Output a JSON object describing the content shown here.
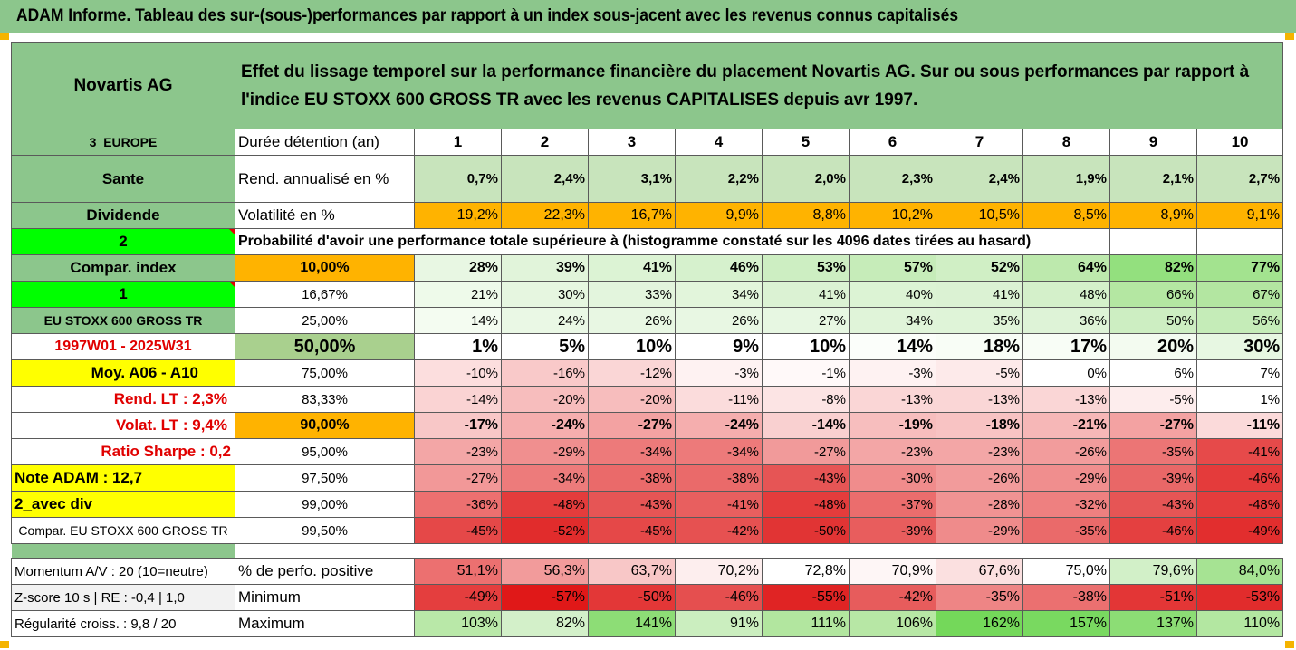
{
  "header": {
    "title": "ADAM Informe. Tableau des sur-(sous-)performances par rapport à un index sous-jacent avec les revenus connus capitalisés"
  },
  "stock": {
    "name": "Novartis AG",
    "description": "Effet du lissage temporel sur la performance financière du placement Novartis AG. Sur ou sous performances par rapport à l'indice EU STOXX 600 GROSS TR avec les revenus CAPITALISES depuis avr 1997.",
    "region": "3_EUROPE",
    "sector": "Sante",
    "category": "Dividende",
    "code_2": "2",
    "compar_index_label": "Compar. index",
    "code_1": "1",
    "index_name": "EU STOXX 600 GROSS TR",
    "period": "1997W01 - 2025W31",
    "moy_label": "Moy. A06 - A10",
    "rend_lt": "Rend. LT :   2,3%",
    "volat_lt": "Volat. LT :   9,4%",
    "sharpe": "Ratio Sharpe :   0,2",
    "note": "Note ADAM : 12,7",
    "div_mode": "2_avec div",
    "compar_full": "Compar. EU STOXX 600 GROSS TR"
  },
  "holding": {
    "label": "Durée détention (an)",
    "years": [
      "1",
      "2",
      "3",
      "4",
      "5",
      "6",
      "7",
      "8",
      "9",
      "10"
    ]
  },
  "rend": {
    "label": "Rend. annualisé en %",
    "values": [
      "0,7%",
      "2,4%",
      "3,1%",
      "2,2%",
      "2,0%",
      "2,3%",
      "2,4%",
      "1,9%",
      "2,1%",
      "2,7%"
    ]
  },
  "vol": {
    "label": "Volatilité en %",
    "values": [
      "19,2%",
      "22,3%",
      "16,7%",
      "9,9%",
      "8,8%",
      "10,2%",
      "10,5%",
      "8,5%",
      "8,9%",
      "9,1%"
    ]
  },
  "prob_title": "Probabilité d'avoir une performance totale supérieure à (histogramme constaté sur les 4096 dates tirées au hasard)",
  "prob_rows": [
    {
      "threshold": "10,00%",
      "values": [
        "28%",
        "39%",
        "41%",
        "46%",
        "53%",
        "57%",
        "52%",
        "64%",
        "82%",
        "77%"
      ]
    },
    {
      "threshold": "16,67%",
      "values": [
        "21%",
        "30%",
        "33%",
        "34%",
        "41%",
        "40%",
        "41%",
        "48%",
        "66%",
        "67%"
      ]
    },
    {
      "threshold": "25,00%",
      "values": [
        "14%",
        "24%",
        "26%",
        "26%",
        "27%",
        "34%",
        "35%",
        "36%",
        "50%",
        "56%"
      ]
    },
    {
      "threshold": "50,00%",
      "values": [
        "1%",
        "5%",
        "10%",
        "9%",
        "10%",
        "14%",
        "18%",
        "17%",
        "20%",
        "30%"
      ]
    },
    {
      "threshold": "75,00%",
      "values": [
        "-10%",
        "-16%",
        "-12%",
        "-3%",
        "-1%",
        "-3%",
        "-5%",
        "0%",
        "6%",
        "7%"
      ]
    },
    {
      "threshold": "83,33%",
      "values": [
        "-14%",
        "-20%",
        "-20%",
        "-11%",
        "-8%",
        "-13%",
        "-13%",
        "-13%",
        "-5%",
        "1%"
      ]
    },
    {
      "threshold": "90,00%",
      "values": [
        "-17%",
        "-24%",
        "-27%",
        "-24%",
        "-14%",
        "-19%",
        "-18%",
        "-21%",
        "-27%",
        "-11%"
      ]
    },
    {
      "threshold": "95,00%",
      "values": [
        "-23%",
        "-29%",
        "-34%",
        "-34%",
        "-27%",
        "-23%",
        "-23%",
        "-26%",
        "-35%",
        "-41%"
      ]
    },
    {
      "threshold": "97,50%",
      "values": [
        "-27%",
        "-34%",
        "-38%",
        "-38%",
        "-43%",
        "-30%",
        "-26%",
        "-29%",
        "-39%",
        "-46%"
      ]
    },
    {
      "threshold": "99,00%",
      "values": [
        "-36%",
        "-48%",
        "-43%",
        "-41%",
        "-48%",
        "-37%",
        "-28%",
        "-32%",
        "-43%",
        "-48%"
      ]
    },
    {
      "threshold": "99,50%",
      "values": [
        "-45%",
        "-52%",
        "-45%",
        "-42%",
        "-50%",
        "-39%",
        "-29%",
        "-35%",
        "-46%",
        "-49%"
      ]
    }
  ],
  "stats": [
    {
      "left": "Momentum A/V : 20 (10=neutre)",
      "label": "% de perfo. positive",
      "values": [
        "51,1%",
        "56,3%",
        "63,7%",
        "70,2%",
        "72,8%",
        "70,9%",
        "67,6%",
        "75,0%",
        "79,6%",
        "84,0%"
      ]
    },
    {
      "left": "Z-score 10 s  |  RE : -0,4  |  1,0",
      "label": "Minimum",
      "values": [
        "-49%",
        "-57%",
        "-50%",
        "-46%",
        "-55%",
        "-42%",
        "-35%",
        "-38%",
        "-51%",
        "-53%"
      ]
    },
    {
      "left": "Régularité croiss. : 9,8 / 20",
      "label": "Maximum",
      "values": [
        "103%",
        "82%",
        "141%",
        "91%",
        "111%",
        "106%",
        "162%",
        "157%",
        "137%",
        "110%"
      ]
    }
  ],
  "colors": {
    "header_green": "#8cc68c",
    "lime": "#00ff00",
    "yellow": "#ffff00",
    "orange": "#ffb300",
    "red_text": "#e00000"
  }
}
